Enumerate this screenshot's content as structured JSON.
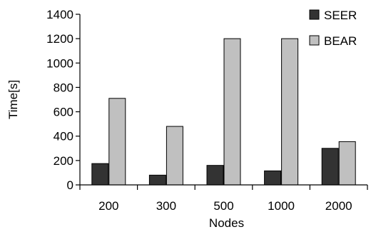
{
  "chart_data": {
    "type": "bar",
    "title": "",
    "xlabel": "Nodes",
    "ylabel": "Time[s]",
    "categories": [
      "200",
      "300",
      "500",
      "1000",
      "2000"
    ],
    "ylim": [
      0,
      1400
    ],
    "yticks": [
      "0",
      "200",
      "400",
      "600",
      "800",
      "1000",
      "1200",
      "1400"
    ],
    "grid": false,
    "legend_position": "top-right",
    "series": [
      {
        "name": "SEER",
        "color": "#333333",
        "values": [
          175,
          80,
          160,
          115,
          300
        ]
      },
      {
        "name": "BEAR",
        "color": "#c0c0c0",
        "values": [
          710,
          480,
          1200,
          1200,
          355
        ]
      }
    ]
  }
}
